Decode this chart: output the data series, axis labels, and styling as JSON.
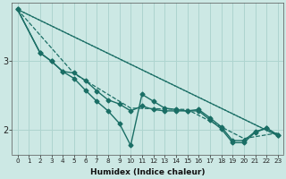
{
  "xlabel": "Humidex (Indice chaleur)",
  "ylabel": "",
  "bg_color": "#cce8e4",
  "line_color": "#1a6e65",
  "grid_color": "#aed4cf",
  "xlim": [
    -0.5,
    23.5
  ],
  "ylim": [
    1.65,
    3.85
  ],
  "yticks": [
    2,
    3
  ],
  "xticks": [
    0,
    1,
    2,
    3,
    4,
    5,
    6,
    7,
    8,
    9,
    10,
    11,
    12,
    13,
    14,
    15,
    16,
    17,
    18,
    19,
    20,
    21,
    22,
    23
  ],
  "series": [
    {
      "x": [
        0,
        23
      ],
      "y": [
        3.75,
        1.92
      ],
      "style": ":",
      "marker": null,
      "markersize": 0,
      "linewidth": 1.0
    },
    {
      "x": [
        0,
        2,
        3,
        4,
        5,
        6,
        7,
        8,
        9,
        10,
        11,
        12,
        13,
        14,
        15,
        16,
        17,
        18,
        19,
        20,
        21,
        22,
        23
      ],
      "y": [
        3.75,
        3.12,
        3.0,
        2.85,
        2.83,
        2.72,
        2.57,
        2.44,
        2.38,
        2.28,
        2.35,
        2.3,
        2.28,
        2.28,
        2.28,
        2.3,
        2.18,
        2.05,
        1.85,
        1.85,
        1.98,
        2.03,
        1.93
      ],
      "style": "-",
      "marker": "D",
      "markersize": 2.5,
      "linewidth": 1.0
    },
    {
      "x": [
        0,
        2,
        3,
        4,
        5,
        6,
        7,
        8,
        9,
        10,
        11,
        12,
        13,
        14,
        15,
        16,
        17,
        18,
        19,
        20,
        21,
        22,
        23
      ],
      "y": [
        3.75,
        3.12,
        3.0,
        2.85,
        2.75,
        2.58,
        2.42,
        2.28,
        2.1,
        1.78,
        2.52,
        2.42,
        2.32,
        2.3,
        2.28,
        2.28,
        2.15,
        2.02,
        1.82,
        1.82,
        1.97,
        2.03,
        1.93
      ],
      "style": "-",
      "marker": "D",
      "markersize": 2.5,
      "linewidth": 1.0
    },
    {
      "x": [
        0,
        23
      ],
      "y": [
        3.75,
        1.92
      ],
      "style": "-",
      "marker": null,
      "markersize": 0,
      "linewidth": 0.9
    },
    {
      "x": [
        0,
        5,
        10,
        15,
        20,
        23
      ],
      "y": [
        3.75,
        2.82,
        2.32,
        2.3,
        1.88,
        1.96
      ],
      "style": "--",
      "marker": null,
      "markersize": 0,
      "linewidth": 0.9
    }
  ]
}
